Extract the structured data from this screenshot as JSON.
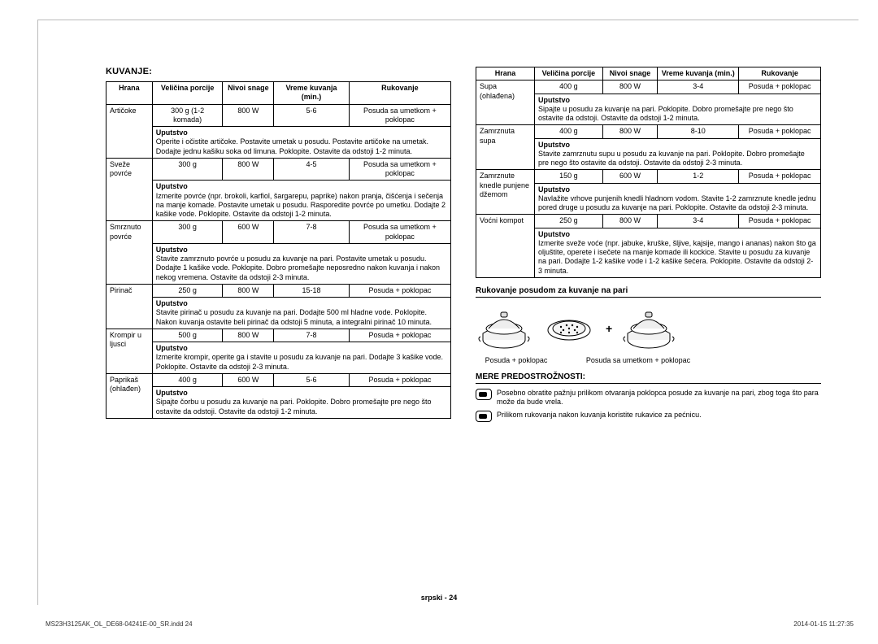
{
  "headings": {
    "kuvanje": "KUVANJE:",
    "rukovanje_posudom": "Rukovanje posudom za kuvanje na pari",
    "mere": "MERE PREDOSTROŽNOSTI:"
  },
  "table_headers": {
    "hrana": "Hrana",
    "velicina": "Veličina porcije",
    "nivoi": "Nivoi snage",
    "vreme": "Vreme kuvanja (min.)",
    "rukovanje": "Rukovanje"
  },
  "uputstvo_label": "Uputstvo",
  "left_rows": [
    {
      "name": "Artičoke",
      "size": "300 g (1-2 komada)",
      "power": "800 W",
      "time": "5-6",
      "handling": "Posuda sa umetkom + poklopac",
      "instr": "Operite i očistite artičoke. Postavite umetak u posudu. Postavite artičoke na umetak. Dodajte jednu kašiku soka od limuna. Poklopite. Ostavite da odstoji 1-2 minuta."
    },
    {
      "name": "Sveže povrće",
      "size": "300 g",
      "power": "800 W",
      "time": "4-5",
      "handling": "Posuda sa umetkom + poklopac",
      "instr": "Izmerite povrće (npr. brokoli, karfiol, šargarepu, paprike) nakon pranja, čišćenja i sečenja na manje komade. Postavite umetak u posudu. Rasporedite povrće po umetku. Dodajte 2 kašike vode. Poklopite. Ostavite da odstoji 1-2 minuta."
    },
    {
      "name": "Smrznuto povrće",
      "size": "300 g",
      "power": "600 W",
      "time": "7-8",
      "handling": "Posuda sa umetkom + poklopac",
      "instr": "Stavite zamrznuto povrće u posudu za kuvanje na pari. Postavite umetak u posudu. Dodajte 1 kašike vode. Poklopite. Dobro promešajte neposredno nakon kuvanja i nakon nekog vremena. Ostavite da odstoji 2-3 minuta."
    },
    {
      "name": "Pirinač",
      "size": "250 g",
      "power": "800 W",
      "time": "15-18",
      "handling": "Posuda + poklopac",
      "instr": "Stavite pirinač u posudu za kuvanje na pari. Dodajte 500 ml hladne vode. Poklopite. Nakon kuvanja ostavite beli pirinač da odstoji 5 minuta, a integralni pirinač 10 minuta."
    },
    {
      "name": "Krompir u ljusci",
      "size": "500 g",
      "power": "800 W",
      "time": "7-8",
      "handling": "Posuda + poklopac",
      "instr": "Izmerite krompir, operite ga i stavite u posudu za kuvanje na pari. Dodajte 3 kašike vode. Poklopite. Ostavite da odstoji 2-3 minuta."
    },
    {
      "name": "Paprikaš (ohlađen)",
      "size": "400 g",
      "power": "600 W",
      "time": "5-6",
      "handling": "Posuda + poklopac",
      "instr": "Sipajte čorbu u posudu za kuvanje na pari. Poklopite. Dobro promešajte pre nego što ostavite da odstoji. Ostavite da odstoji 1-2 minuta."
    }
  ],
  "right_rows": [
    {
      "name": "Supa (ohlađena)",
      "size": "400 g",
      "power": "800 W",
      "time": "3-4",
      "handling": "Posuda + poklopac",
      "instr": "Sipajte u posudu za kuvanje na pari. Poklopite. Dobro promešajte pre nego što ostavite da odstoji. Ostavite da odstoji 1-2 minuta."
    },
    {
      "name": "Zamrznuta supa",
      "size": "400 g",
      "power": "800 W",
      "time": "8-10",
      "handling": "Posuda + poklopac",
      "instr": "Stavite zamrznutu supu u posudu za kuvanje na pari. Poklopite. Dobro promešajte pre nego što ostavite da odstoji. Ostavite da odstoji 2-3 minuta."
    },
    {
      "name": "Zamrznute knedle punjene džemom",
      "size": "150 g",
      "power": "600 W",
      "time": "1-2",
      "handling": "Posuda + poklopac",
      "instr": "Navlažite vrhove punjenih knedli hladnom vodom. Stavite 1-2 zamrznute knedle jednu pored druge u posudu za kuvanje na pari. Poklopite. Ostavite da odstoji 2-3 minuta."
    },
    {
      "name": "Voćni kompot",
      "size": "250 g",
      "power": "800 W",
      "time": "3-4",
      "handling": "Posuda + poklopac",
      "instr": "Izmerite sveže voće (npr. jabuke, kruške, šljive, kajsije, mango i ananas) nakon što ga oljuštite, operete i isečete na manje komade ili kockice. Stavite u posudu za kuvanje na pari. Dodajte 1-2 kašike vode i 1-2 kašike šećera. Poklopite. Ostavite da odstoji 2-3 minuta."
    }
  ],
  "captions": {
    "posuda_poklopac": "Posuda + poklopac",
    "posuda_umetak": "Posuda sa umetkom + poklopac",
    "plus": "+"
  },
  "cautions": [
    "Posebno obratite pažnju prilikom otvaranja poklopca posude za kuvanje na pari, zbog toga što para može da bude vrela.",
    "Prilikom rukovanja nakon kuvanja koristite rukavice za pećnicu."
  ],
  "footer": {
    "lang_page": "srpski - 24",
    "file": "MS23H3125AK_OL_DE68-04241E-00_SR.indd   24",
    "timestamp": "2014-01-15   11:27:35"
  },
  "colors": {
    "border": "#000000",
    "frame": "#bbbbbb",
    "text": "#000000"
  }
}
